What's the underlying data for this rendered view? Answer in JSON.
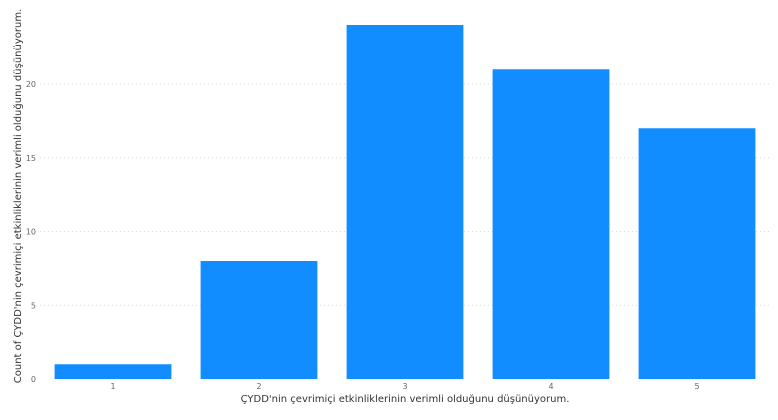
{
  "chart_data": {
    "type": "bar",
    "categories": [
      "1",
      "2",
      "3",
      "4",
      "5"
    ],
    "values": [
      1,
      8,
      24,
      21,
      17
    ],
    "xlabel": "ÇYDD'nin çevrimiçi etkinliklerinin verimli olduğunu düşünüyorum.",
    "ylabel": "Count of ÇYDD'nin çevrimiçi etkinliklerinin verimli olduğunu düşünüyorum.",
    "ylim": [
      0,
      25
    ],
    "yticks": [
      0,
      5,
      10,
      15,
      20
    ],
    "grid": true,
    "bar_color": "#118DFF"
  }
}
